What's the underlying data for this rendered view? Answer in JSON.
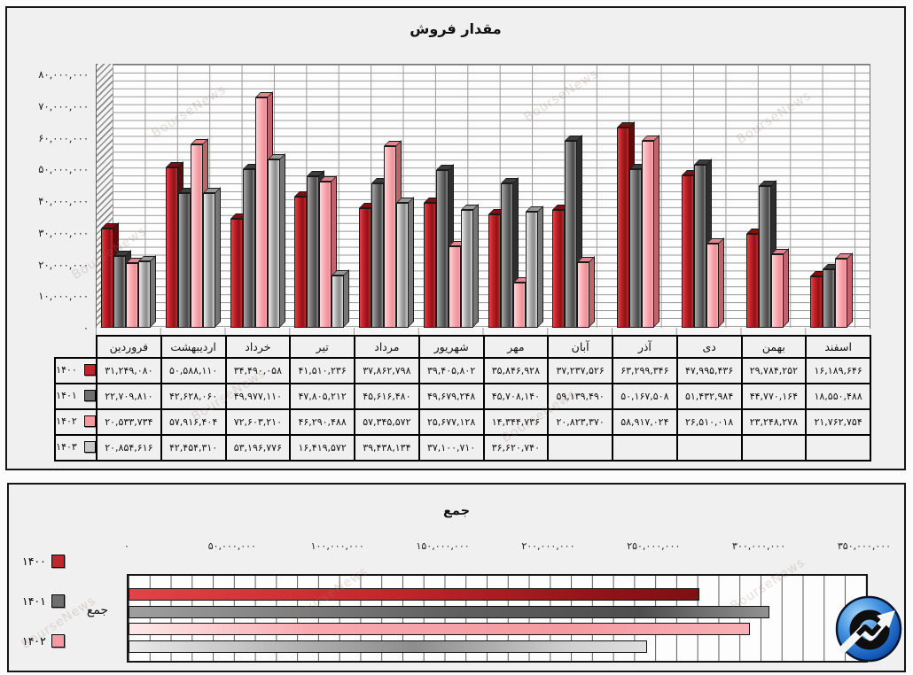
{
  "watermark_text": "BourseNews",
  "top_panel": {
    "title": "مقدار فروش"
  },
  "bottom_panel": {
    "title": "جمع",
    "category_label": "جمع"
  },
  "colors": {
    "year_1400": "#c0272d",
    "year_1401": "#6e6e6e",
    "year_1402": "#f49aa0",
    "year_1403": "#c8c8c8",
    "panel_bg": "#f0f0f0",
    "gridline": "#9c9c9c"
  },
  "chart_data": [
    {
      "type": "bar",
      "orientation": "vertical-3d-columns",
      "title": "مقدار فروش",
      "categories": [
        "فروردین",
        "اردیبهشت",
        "خرداد",
        "تیر",
        "مرداد",
        "شهریور",
        "مهر",
        "آبان",
        "آذر",
        "دی",
        "بهمن",
        "اسفند"
      ],
      "ylim": [
        0,
        80000000
      ],
      "ytick_step": 10000000,
      "ytick_labels": [
        "۰",
        "۱۰,۰۰۰,۰۰۰",
        "۲۰,۰۰۰,۰۰۰",
        "۳۰,۰۰۰,۰۰۰",
        "۴۰,۰۰۰,۰۰۰",
        "۵۰,۰۰۰,۰۰۰",
        "۶۰,۰۰۰,۰۰۰",
        "۷۰,۰۰۰,۰۰۰",
        "۸۰,۰۰۰,۰۰۰"
      ],
      "grid": "horizontal minor every 2,500,000; legend rendered as data table below chart",
      "series": [
        {
          "name": "۱۴۰۰",
          "color": "#c0272d",
          "values": [
            31249080,
            50588110,
            34490058,
            41510236,
            37862798,
            39405802,
            35846928,
            37237526,
            63299346,
            47995436,
            29784252,
            16189646
          ],
          "labels": [
            "۳۱,۲۴۹,۰۸۰",
            "۵۰,۵۸۸,۱۱۰",
            "۳۴,۴۹۰,۰۵۸",
            "۴۱,۵۱۰,۲۳۶",
            "۳۷,۸۶۲,۷۹۸",
            "۳۹,۴۰۵,۸۰۲",
            "۳۵,۸۴۶,۹۲۸",
            "۳۷,۲۳۷,۵۲۶",
            "۶۳,۲۹۹,۳۴۶",
            "۴۷,۹۹۵,۴۳۶",
            "۲۹,۷۸۴,۲۵۲",
            "۱۶,۱۸۹,۶۴۶"
          ]
        },
        {
          "name": "۱۴۰۱",
          "color": "#6e6e6e",
          "values": [
            22709810,
            42628060,
            49977110,
            47805212,
            45616480,
            49679248,
            45708140,
            59139490,
            50167508,
            51432984,
            44770164,
            18550488
          ],
          "labels": [
            "۲۲,۷۰۹,۸۱۰",
            "۴۲,۶۲۸,۰۶۰",
            "۴۹,۹۷۷,۱۱۰",
            "۴۷,۸۰۵,۲۱۲",
            "۴۵,۶۱۶,۴۸۰",
            "۴۹,۶۷۹,۲۴۸",
            "۴۵,۷۰۸,۱۴۰",
            "۵۹,۱۳۹,۴۹۰",
            "۵۰,۱۶۷,۵۰۸",
            "۵۱,۴۳۲,۹۸۴",
            "۴۴,۷۷۰,۱۶۴",
            "۱۸,۵۵۰,۴۸۸"
          ]
        },
        {
          "name": "۱۴۰۲",
          "color": "#f49aa0",
          "values": [
            20533734,
            57916404,
            72603210,
            46290488,
            57345572,
            25677128,
            14344736,
            20823370,
            58917024,
            26510018,
            23248278,
            21762754
          ],
          "labels": [
            "۲۰,۵۳۳,۷۳۴",
            "۵۷,۹۱۶,۴۰۴",
            "۷۲,۶۰۳,۲۱۰",
            "۴۶,۲۹۰,۴۸۸",
            "۵۷,۳۴۵,۵۷۲",
            "۲۵,۶۷۷,۱۲۸",
            "۱۴,۳۴۴,۷۳۶",
            "۲۰,۸۲۳,۳۷۰",
            "۵۸,۹۱۷,۰۲۴",
            "۲۶,۵۱۰,۰۱۸",
            "۲۳,۲۴۸,۲۷۸",
            "۲۱,۷۶۲,۷۵۴"
          ]
        },
        {
          "name": "۱۴۰۳",
          "color": "#c8c8c8",
          "values": [
            20854616,
            42454310,
            53196776,
            16419572,
            39438134,
            37100710,
            36620740,
            null,
            null,
            null,
            null,
            null
          ],
          "labels": [
            "۲۰,۸۵۴,۶۱۶",
            "۴۲,۴۵۴,۳۱۰",
            "۵۳,۱۹۶,۷۷۶",
            "۱۶,۴۱۹,۵۷۲",
            "۳۹,۴۳۸,۱۳۴",
            "۳۷,۱۰۰,۷۱۰",
            "۳۶,۶۲۰,۷۴۰",
            "",
            "",
            "",
            "",
            ""
          ]
        }
      ]
    },
    {
      "type": "bar",
      "orientation": "horizontal",
      "title": "جمع",
      "categories": [
        "جمع"
      ],
      "xlim": [
        0,
        350000000
      ],
      "xtick_step": 50000000,
      "xtick_labels": [
        "۰",
        "۵۰,۰۰۰,۰۰۰",
        "۱۰۰,۰۰۰,۰۰۰",
        "۱۵۰,۰۰۰,۰۰۰",
        "۲۰۰,۰۰۰,۰۰۰",
        "۲۵۰,۰۰۰,۰۰۰",
        "۳۰۰,۰۰۰,۰۰۰",
        "۳۵۰,۰۰۰,۰۰۰"
      ],
      "grid": "vertical every 10,000,000",
      "legend_position": "left",
      "legend_entries": [
        "۱۴۰۰",
        "۱۴۰۱",
        "۱۴۰۲"
      ],
      "series": [
        {
          "name": "۱۴۰۰",
          "color": "#c0272d",
          "values": [
            270953012
          ]
        },
        {
          "name": "۱۴۰۱",
          "color": "#6e6e6e",
          "values": [
            304124060
          ]
        },
        {
          "name": "۱۴۰۲",
          "color": "#f49aa0",
          "values": [
            294711272
          ]
        },
        {
          "name": "۱۴۰۳",
          "color": "#c8c8c8",
          "values": [
            246084858
          ]
        }
      ]
    }
  ]
}
